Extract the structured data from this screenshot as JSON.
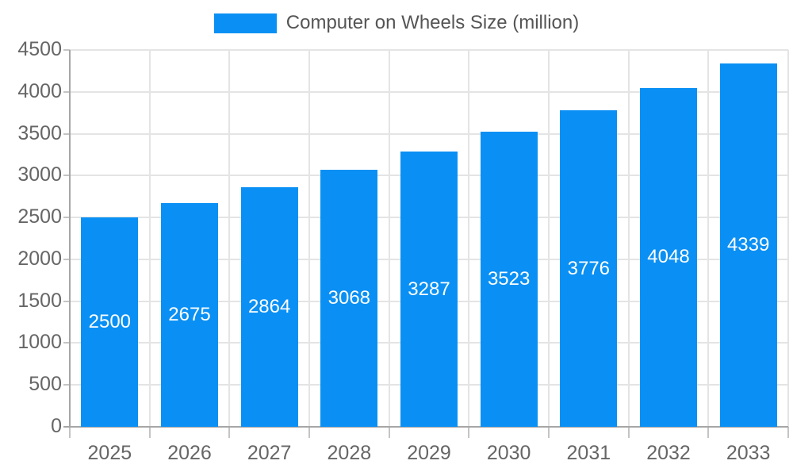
{
  "legend": {
    "label": "Computer on Wheels Size (million)"
  },
  "chart_data": {
    "type": "bar",
    "title": "Computer on Wheels Size (million)",
    "series_name": "Computer on Wheels Size (million)",
    "categories": [
      "2025",
      "2026",
      "2027",
      "2028",
      "2029",
      "2030",
      "2031",
      "2032",
      "2033"
    ],
    "values": [
      2500,
      2675,
      2864,
      3068,
      3287,
      3523,
      3776,
      4048,
      4339
    ],
    "xlabel": "",
    "ylabel": "",
    "ylim": [
      0,
      4500
    ],
    "yticks": [
      0,
      500,
      1000,
      1500,
      2000,
      2500,
      3000,
      3500,
      4000,
      4500
    ],
    "grid": true,
    "legend_position": "top",
    "bar_labels_inside": true,
    "colors": {
      "bar": "#0a90f4",
      "bar_label": "#ffffff",
      "grid": "#e4e4e4",
      "axis": "#a6a6a6",
      "tick": "#c4c4c4",
      "tick_label": "#666666",
      "legend_text": "#555555",
      "background": "#ffffff"
    }
  }
}
